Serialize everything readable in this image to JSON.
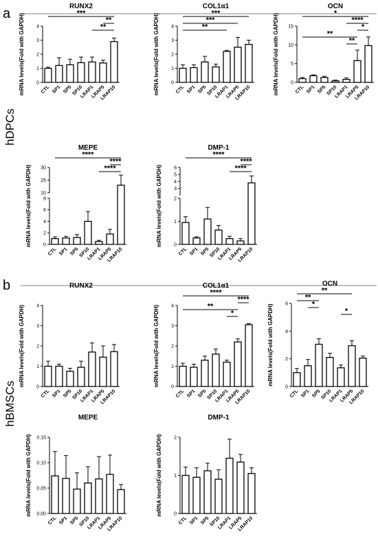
{
  "sections": [
    {
      "letter": "a",
      "group_label": "hDPCs"
    },
    {
      "letter": "b",
      "group_label": "hBMSCs"
    }
  ],
  "chart_data": [
    {
      "type": "bar",
      "title": "RUNX2",
      "ylabel": "mRNA levels(Fold with GAPDH)",
      "categories": [
        "CTL",
        "SP1",
        "SP5",
        "SP10",
        "LRAP1",
        "LRAP5",
        "LRAP10"
      ],
      "values": [
        1.0,
        1.2,
        1.25,
        1.4,
        1.45,
        1.38,
        2.9
      ],
      "errors": [
        0.08,
        0.55,
        0.4,
        0.4,
        0.35,
        0.2,
        0.25
      ],
      "ylim": [
        0,
        4
      ],
      "yticks": [
        0,
        1,
        2,
        3,
        4
      ],
      "significance": [
        {
          "from": 0,
          "to": 6,
          "label": "***"
        },
        {
          "from": 5,
          "to": 6,
          "label": "**"
        },
        {
          "from": 4,
          "to": 6,
          "label": "**"
        }
      ]
    },
    {
      "type": "bar",
      "title": "COL1α1",
      "ylabel": "mRNA levels(Fold with GAPDH)",
      "categories": [
        "CTL",
        "SP1",
        "SP5",
        "SP10",
        "LRAP1",
        "LRAP5",
        "LRAP10"
      ],
      "values": [
        1.0,
        1.05,
        1.45,
        1.1,
        2.2,
        2.5,
        2.7
      ],
      "errors": [
        0.25,
        0.2,
        0.4,
        0.2,
        0.08,
        0.7,
        0.3
      ],
      "ylim": [
        0,
        4
      ],
      "yticks": [
        0,
        1,
        2,
        3,
        4
      ],
      "significance": [
        {
          "from": 0,
          "to": 6,
          "label": "***"
        },
        {
          "from": 0,
          "to": 5,
          "label": "***"
        },
        {
          "from": 0,
          "to": 4,
          "label": "**"
        }
      ]
    },
    {
      "type": "bar",
      "title": "OCN",
      "ylabel": "mRNA levels(Fold with GAPDH)",
      "categories": [
        "CTL",
        "SP1",
        "SP5",
        "SP10",
        "LRAP1",
        "LRAP5",
        "LRAP10"
      ],
      "values": [
        1.0,
        1.8,
        1.3,
        0.4,
        0.8,
        5.8,
        9.8
      ],
      "errors": [
        0.3,
        0.2,
        0.3,
        0.2,
        0.4,
        2.8,
        2.3
      ],
      "ylim": [
        0,
        15
      ],
      "yticks": [
        0,
        5,
        10,
        15
      ],
      "significance": [
        {
          "from": 0,
          "to": 6,
          "label": "*"
        },
        {
          "from": 4,
          "to": 6,
          "label": "****"
        },
        {
          "from": 5,
          "to": 6,
          "label": "*"
        },
        {
          "from": 0,
          "to": 5,
          "label": "**"
        },
        {
          "from": 4,
          "to": 5,
          "label": "**"
        }
      ]
    },
    {
      "type": "bar",
      "title": "MEPE",
      "ylabel": "mRNA levels(Fold with GAPDH)",
      "categories": [
        "CTL",
        "SP1",
        "SP5",
        "SP10",
        "LRAP1",
        "LRAP5",
        "LRAP10"
      ],
      "values": [
        1.0,
        1.1,
        1.2,
        4.0,
        0.5,
        1.8,
        23
      ],
      "errors": [
        0.3,
        0.3,
        0.5,
        1.7,
        0.2,
        0.8,
        4.0
      ],
      "ylim": [
        0,
        30
      ],
      "axis_break": [
        8,
        20
      ],
      "yticks": [
        0,
        2,
        4,
        6,
        8,
        20,
        25,
        30
      ],
      "significance": [
        {
          "from": 0,
          "to": 6,
          "label": "****"
        },
        {
          "from": 5,
          "to": 6,
          "label": "****"
        },
        {
          "from": 4,
          "to": 6,
          "label": "****"
        }
      ]
    },
    {
      "type": "bar",
      "title": "DMP-1",
      "ylabel": "mRNA levels(Fold with GAPDH)",
      "categories": [
        "CTL",
        "SP1",
        "SP5",
        "SP10",
        "LRAP1",
        "LRAP5",
        "LRAP10"
      ],
      "values": [
        0.95,
        0.28,
        1.1,
        0.62,
        0.25,
        0.15,
        3.8
      ],
      "errors": [
        0.25,
        0.05,
        0.5,
        0.2,
        0.1,
        0.1,
        1.0
      ],
      "ylim": [
        0,
        6
      ],
      "axis_break": [
        2,
        2
      ],
      "yticks": [
        0,
        1,
        2,
        3,
        4,
        5,
        6
      ],
      "significance": [
        {
          "from": 0,
          "to": 6,
          "label": "****"
        },
        {
          "from": 5,
          "to": 6,
          "label": "****"
        },
        {
          "from": 4,
          "to": 6,
          "label": "****"
        }
      ]
    },
    {
      "type": "bar",
      "title": "RUNX2",
      "ylabel": "mRNA levels(Fold with GAPDH)",
      "categories": [
        "CTL",
        "SP1",
        "SP5",
        "SP10",
        "LRAP1",
        "LRAP5",
        "LRAP10"
      ],
      "values": [
        1.0,
        1.0,
        0.75,
        0.95,
        1.7,
        1.45,
        1.72
      ],
      "errors": [
        0.25,
        0.1,
        0.15,
        0.3,
        0.45,
        0.55,
        0.35
      ],
      "ylim": [
        0,
        4
      ],
      "yticks": [
        0,
        1,
        2,
        3,
        4
      ],
      "significance": []
    },
    {
      "type": "bar",
      "title": "COL1α1",
      "ylabel": "mRNA levels(Fold with GAPDH)",
      "categories": [
        "CTL",
        "SP1",
        "SP5",
        "SP10",
        "LRAP1",
        "LRAP5",
        "LRAP10"
      ],
      "values": [
        1.0,
        0.95,
        1.3,
        1.6,
        1.2,
        2.2,
        3.05
      ],
      "errors": [
        0.15,
        0.15,
        0.2,
        0.25,
        0.1,
        0.15,
        0.05
      ],
      "ylim": [
        0,
        4
      ],
      "yticks": [
        0,
        1,
        2,
        3,
        4
      ],
      "significance": [
        {
          "from": 0,
          "to": 6,
          "label": "****"
        },
        {
          "from": 5,
          "to": 6,
          "label": "****"
        },
        {
          "from": 0,
          "to": 5,
          "label": "**"
        },
        {
          "from": 4,
          "to": 5,
          "label": "*"
        }
      ]
    },
    {
      "type": "bar",
      "title": "OCN",
      "ylabel": "mRNA levels(Fold with GAPDH)",
      "categories": [
        "CTL",
        "SP1",
        "SP5",
        "SP10",
        "LRAP1",
        "LRAP5",
        "LRAP10"
      ],
      "values": [
        1.0,
        1.5,
        3.05,
        2.1,
        1.35,
        2.95,
        2.05
      ],
      "errors": [
        0.3,
        0.45,
        0.4,
        0.3,
        0.2,
        0.35,
        0.15
      ],
      "ylim": [
        0,
        6
      ],
      "yticks": [
        0,
        2,
        4,
        6
      ],
      "significance": [
        {
          "from": 0,
          "to": 5,
          "label": "**"
        },
        {
          "from": 0,
          "to": 2,
          "label": "**"
        },
        {
          "from": 1,
          "to": 2,
          "label": "*"
        },
        {
          "from": 4,
          "to": 5,
          "label": "*"
        }
      ]
    },
    {
      "type": "bar",
      "title": "MEPE",
      "ylabel": "mRNA levels(Fold with GAPDH)",
      "categories": [
        "CTL",
        "SP1",
        "SP5",
        "SP10",
        "LRAP1",
        "LRAP5",
        "LRAP10"
      ],
      "values": [
        0.074,
        0.069,
        0.048,
        0.06,
        0.068,
        0.077,
        0.047
      ],
      "errors": [
        0.048,
        0.045,
        0.032,
        0.032,
        0.044,
        0.038,
        0.01
      ],
      "ylim": [
        0,
        0.15
      ],
      "yticks": [
        0,
        0.05,
        0.1,
        0.15
      ],
      "ytick_labels": [
        "0.00",
        "0.05",
        "0.10",
        "0.15"
      ],
      "significance": []
    },
    {
      "type": "bar",
      "title": "DMP-1",
      "ylabel": "mRNA levels(Fold with GAPDH)",
      "categories": [
        "CTL",
        "SP1",
        "SP5",
        "SP10",
        "LRAP1",
        "LRAP5",
        "LRAP10"
      ],
      "values": [
        1.0,
        0.95,
        1.12,
        0.9,
        1.45,
        1.35,
        1.05
      ],
      "errors": [
        0.22,
        0.25,
        0.2,
        0.25,
        0.5,
        0.2,
        0.15
      ],
      "ylim": [
        0,
        2
      ],
      "yticks": [
        0,
        1,
        2
      ],
      "significance": []
    }
  ]
}
